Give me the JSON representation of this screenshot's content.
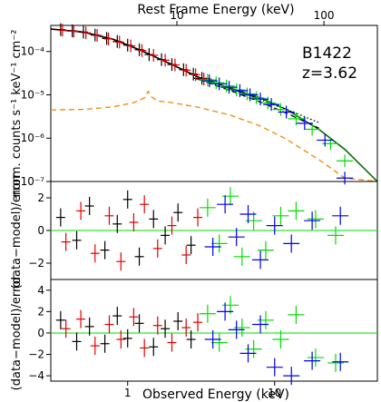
{
  "chart_data": [
    {
      "type": "scatter",
      "panel": "spectrum",
      "top_xlabel": "Rest Frame Energy (keV)",
      "ylabel": "norm. counts s⁻¹ keV⁻¹ cm⁻²",
      "yscale": "log",
      "xscale": "log",
      "xlim": [
        0.3,
        50
      ],
      "ylim": [
        1e-07,
        0.0004
      ],
      "annotation": [
        "B1422",
        "z=3.62"
      ],
      "top_ticks": [
        {
          "value": 10,
          "label": "10"
        },
        {
          "value": 100,
          "label": "100"
        }
      ],
      "y_ticks": [
        {
          "value": 0.0001,
          "label": "10⁻⁴"
        },
        {
          "value": 1e-05,
          "label": "10⁻⁵"
        },
        {
          "value": 1e-06,
          "label": "10⁻⁶"
        },
        {
          "value": 1e-07,
          "label": "10⁻⁷"
        }
      ],
      "series": [
        {
          "color": "#000000",
          "x": [
            0.35,
            0.42,
            0.5,
            0.6,
            0.72,
            0.85,
            1.0,
            1.2,
            1.4,
            1.7,
            2.0,
            2.4,
            2.8,
            3.2
          ],
          "y": [
            0.00032,
            0.0003,
            0.00028,
            0.00024,
            0.0002,
            0.00017,
            0.00014,
            0.00011,
            8.5e-05,
            6.5e-05,
            5e-05,
            3.8e-05,
            3e-05,
            2.4e-05
          ]
        },
        {
          "color": "#e00000",
          "x": [
            0.36,
            0.43,
            0.52,
            0.62,
            0.74,
            0.88,
            1.05,
            1.25,
            1.5,
            1.8,
            2.1,
            2.5,
            2.9,
            3.3
          ],
          "y": [
            0.00031,
            0.000295,
            0.00027,
            0.000235,
            0.000195,
            0.000165,
            0.000135,
            0.000105,
            8.2e-05,
            6.3e-05,
            4.9e-05,
            3.7e-05,
            2.9e-05,
            2.3e-05
          ]
        },
        {
          "color": "#00dd00",
          "x": [
            3.5,
            4.0,
            4.7,
            5.5,
            6.5,
            7.5,
            9.0,
            11,
            14,
            18,
            24,
            30
          ],
          "y": [
            2.2e-05,
            1.9e-05,
            1.6e-05,
            1.3e-05,
            1.05e-05,
            8.5e-06,
            6.5e-06,
            4.6e-06,
            2.8e-06,
            1.6e-06,
            7.5e-07,
            3e-07
          ]
        },
        {
          "color": "#0000ee",
          "x": [
            3.6,
            4.2,
            4.9,
            5.8,
            6.8,
            8.0,
            9.5,
            12,
            16,
            22,
            30
          ],
          "y": [
            2.1e-05,
            1.8e-05,
            1.5e-05,
            1.25e-05,
            1e-05,
            8e-06,
            6e-06,
            4e-06,
            2.2e-06,
            9e-07,
            1.2e-07
          ]
        }
      ],
      "models": [
        {
          "color": "#e00000",
          "style": "solid",
          "x": [
            0.3,
            0.5,
            0.8,
            1.2,
            2.0,
            3.0
          ],
          "y": [
            0.00033,
            0.00028,
            0.00019,
            0.00011,
            5e-05,
            2.6e-05
          ]
        },
        {
          "color": "#000000",
          "style": "solid",
          "x": [
            0.3,
            0.5,
            0.8,
            1.2,
            2.0,
            3.0,
            5.0,
            8.0
          ],
          "y": [
            0.00033,
            0.00028,
            0.00019,
            0.00011,
            5e-05,
            2.6e-05,
            1.4e-05,
            8e-06
          ]
        },
        {
          "color": "#006000",
          "style": "solid",
          "x": [
            3.0,
            5.0,
            8.0,
            12,
            20,
            30,
            50
          ],
          "y": [
            2.5e-05,
            1.45e-05,
            8.5e-06,
            4.6e-06,
            1.6e-06,
            5.5e-07,
            1e-07
          ]
        },
        {
          "color": "#000000",
          "style": "dashed",
          "x": [
            3.0,
            5.0,
            8.0,
            12,
            20
          ],
          "y": [
            2.3e-05,
            1.25e-05,
            6.8e-06,
            3.8e-06,
            1.7e-06
          ]
        },
        {
          "color": "#000000",
          "style": "dotted",
          "x": [
            3.0,
            5.0,
            8.0,
            12,
            20
          ],
          "y": [
            2.4e-05,
            1.35e-05,
            7.8e-06,
            4.6e-06,
            2.3e-06
          ]
        },
        {
          "color": "#ee8800",
          "style": "dashed",
          "x": [
            0.3,
            0.5,
            0.8,
            1.1,
            1.3,
            1.38,
            1.45,
            1.6,
            2.0,
            3.0,
            5.0,
            8.0,
            12,
            20,
            30,
            50
          ],
          "y": [
            4.5e-06,
            4.6e-06,
            5.3e-06,
            6.6e-06,
            8.5e-06,
            1.2e-05,
            9e-06,
            7.2e-06,
            6.6e-06,
            5.2e-06,
            3.4e-06,
            1.9e-06,
            9.5e-07,
            3.2e-07,
            1.2e-07,
            2.5e-08
          ]
        }
      ]
    },
    {
      "type": "scatter",
      "panel": "residuals-1",
      "ylabel": "(data−model)/error",
      "xscale": "log",
      "xlim": [
        0.3,
        50
      ],
      "ylim": [
        -3,
        3
      ],
      "y_ticks": [
        {
          "value": 2,
          "label": "2"
        },
        {
          "value": 0,
          "label": "0"
        },
        {
          "value": -2,
          "label": "−2"
        }
      ],
      "zero_line_color": "#00dd00",
      "series": [
        {
          "color": "#000000",
          "x": [
            0.35,
            0.45,
            0.55,
            0.7,
            0.85,
            1.0,
            1.2,
            1.5,
            1.8,
            2.2,
            2.7
          ],
          "y": [
            0.8,
            -0.6,
            1.5,
            -1.2,
            0.4,
            1.9,
            -1.6,
            0.7,
            -0.3,
            1.1,
            -0.9
          ]
        },
        {
          "color": "#e00000",
          "x": [
            0.38,
            0.48,
            0.6,
            0.75,
            0.9,
            1.1,
            1.3,
            1.6,
            2.0,
            2.5,
            3.0
          ],
          "y": [
            -0.7,
            1.2,
            -1.4,
            0.9,
            -1.9,
            0.5,
            1.6,
            -1.1,
            0.3,
            -1.5,
            0.8
          ]
        },
        {
          "color": "#00dd00",
          "x": [
            3.5,
            4.2,
            5.0,
            6.0,
            7.2,
            8.7,
            11,
            14,
            19,
            26
          ],
          "y": [
            1.4,
            -0.8,
            2.1,
            -1.6,
            0.6,
            -1.2,
            0.9,
            1.2,
            0.7,
            -0.3
          ]
        },
        {
          "color": "#0000ee",
          "x": [
            3.8,
            4.6,
            5.5,
            6.6,
            8.0,
            10,
            13,
            18,
            28
          ],
          "y": [
            -1.0,
            1.6,
            -0.4,
            1.0,
            -1.8,
            0.3,
            -0.8,
            0.6,
            0.9
          ]
        }
      ]
    },
    {
      "type": "scatter",
      "panel": "residuals-2",
      "ylabel": "(data−model)/error",
      "xlabel": "Observed Energy (keV)",
      "xscale": "log",
      "xlim": [
        0.3,
        50
      ],
      "ylim": [
        -4.5,
        5
      ],
      "y_ticks": [
        {
          "value": 4,
          "label": "4"
        },
        {
          "value": 2,
          "label": "2"
        },
        {
          "value": 0,
          "label": "0"
        },
        {
          "value": -2,
          "label": "−2"
        },
        {
          "value": -4,
          "label": "−4"
        }
      ],
      "x_ticks": [
        {
          "value": 1,
          "label": "1"
        },
        {
          "value": 10,
          "label": "10"
        }
      ],
      "zero_line_color": "#00dd00",
      "series": [
        {
          "color": "#000000",
          "x": [
            0.35,
            0.45,
            0.55,
            0.7,
            0.85,
            1.0,
            1.2,
            1.5,
            1.8,
            2.2,
            2.7
          ],
          "y": [
            1.2,
            -0.8,
            0.6,
            -1.0,
            1.6,
            -0.5,
            0.9,
            -1.3,
            0.4,
            1.1,
            -0.6
          ]
        },
        {
          "color": "#e00000",
          "x": [
            0.38,
            0.48,
            0.6,
            0.75,
            0.9,
            1.1,
            1.3,
            1.6,
            2.0,
            2.5,
            3.0
          ],
          "y": [
            0.4,
            1.3,
            -1.2,
            0.8,
            -0.6,
            1.5,
            -1.4,
            0.7,
            -0.9,
            0.5,
            1.0
          ]
        },
        {
          "color": "#00dd00",
          "x": [
            3.5,
            4.2,
            5.0,
            6.0,
            7.2,
            8.7,
            11,
            14,
            19,
            26
          ],
          "y": [
            1.8,
            -0.9,
            2.6,
            0.5,
            -1.5,
            1.2,
            -0.6,
            1.7,
            -2.3,
            -2.8
          ]
        },
        {
          "color": "#0000ee",
          "x": [
            3.8,
            4.6,
            5.5,
            6.6,
            8.0,
            10,
            13,
            18,
            28
          ],
          "y": [
            -0.6,
            2.0,
            0.3,
            -1.9,
            0.8,
            -3.2,
            -4.0,
            -2.6,
            -2.7
          ]
        }
      ]
    }
  ]
}
